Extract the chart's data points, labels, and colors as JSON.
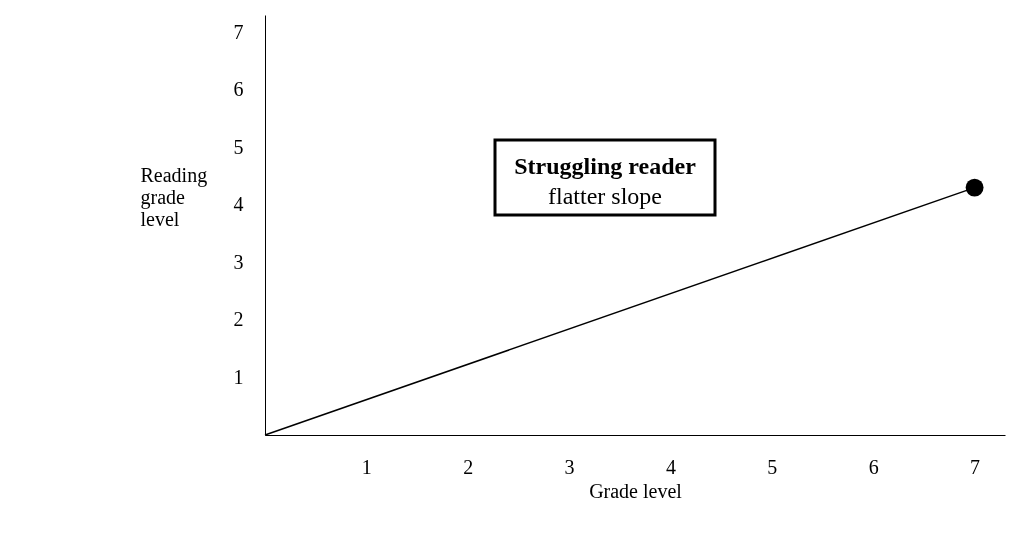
{
  "chart_data": {
    "type": "line",
    "xlabel": "Grade level",
    "ylabel": "Reading grade level",
    "x": [
      0,
      7
    ],
    "series": [
      {
        "color": "#000000",
        "values": [
          0,
          4.3
        ]
      },
      {
        "type": "scatter",
        "x": [
          7
        ],
        "color": "#000000",
        "values": [
          4.3
        ],
        "marker": "circle"
      }
    ],
    "xlim": [
      0,
      7.3
    ],
    "ylim": [
      0,
      7.3
    ],
    "xticks": [
      1,
      2,
      3,
      4,
      5,
      6,
      7
    ],
    "yticks": [
      1,
      2,
      3,
      4,
      5,
      6,
      7
    ],
    "grid": false,
    "annotations": [
      "Struggling reader",
      "flatter slope"
    ]
  }
}
